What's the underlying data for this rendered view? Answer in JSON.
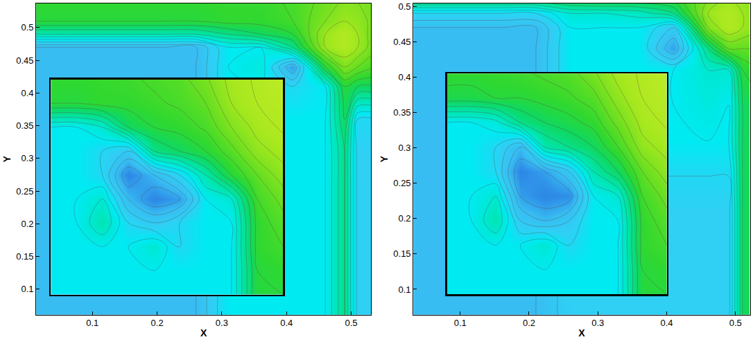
{
  "chart_data": [
    {
      "type": "contour",
      "xlabel": "X",
      "ylabel": "Y",
      "xlim": [
        0.013,
        0.531
      ],
      "ylim": [
        0.061,
        0.537
      ],
      "xticks": [
        0.1,
        0.2,
        0.3,
        0.4,
        0.5
      ],
      "yticks": [
        0.1,
        0.15,
        0.2,
        0.25,
        0.3,
        0.35,
        0.4,
        0.45,
        0.5
      ],
      "zlim": [
        0,
        1
      ],
      "x": [
        0.01,
        0.06,
        0.11,
        0.16,
        0.21,
        0.26,
        0.31,
        0.36,
        0.41,
        0.46,
        0.49,
        0.51,
        0.54
      ],
      "y": [
        0.06,
        0.11,
        0.16,
        0.21,
        0.26,
        0.31,
        0.36,
        0.41,
        0.44,
        0.47,
        0.49,
        0.51,
        0.54
      ],
      "z": [
        [
          0.2,
          0.2,
          0.2,
          0.2,
          0.2,
          0.2,
          0.35,
          0.35,
          0.35,
          0.35,
          0.5,
          0.28,
          0.28
        ],
        [
          0.2,
          0.2,
          0.2,
          0.2,
          0.2,
          0.2,
          0.35,
          0.35,
          0.35,
          0.35,
          0.5,
          0.28,
          0.28
        ],
        [
          0.2,
          0.2,
          0.2,
          0.2,
          0.2,
          0.2,
          0.35,
          0.35,
          0.35,
          0.35,
          0.5,
          0.28,
          0.28
        ],
        [
          0.2,
          0.2,
          0.2,
          0.2,
          0.2,
          0.2,
          0.35,
          0.35,
          0.35,
          0.35,
          0.5,
          0.28,
          0.28
        ],
        [
          0.2,
          0.2,
          0.2,
          0.2,
          0.2,
          0.2,
          0.35,
          0.35,
          0.35,
          0.35,
          0.5,
          0.28,
          0.28
        ],
        [
          0.2,
          0.2,
          0.2,
          0.2,
          0.2,
          0.2,
          0.35,
          0.35,
          0.35,
          0.35,
          0.5,
          0.28,
          0.28
        ],
        [
          0.2,
          0.2,
          0.2,
          0.2,
          0.2,
          0.2,
          0.35,
          0.35,
          0.35,
          0.35,
          0.55,
          0.3,
          0.3
        ],
        [
          0.2,
          0.2,
          0.2,
          0.2,
          0.2,
          0.2,
          0.35,
          0.35,
          0.3,
          0.35,
          0.6,
          0.55,
          0.55
        ],
        [
          0.2,
          0.2,
          0.2,
          0.2,
          0.2,
          0.2,
          0.35,
          0.38,
          0.15,
          0.6,
          0.75,
          0.7,
          0.65
        ],
        [
          0.2,
          0.2,
          0.2,
          0.2,
          0.2,
          0.2,
          0.35,
          0.35,
          0.5,
          0.8,
          0.85,
          0.8,
          0.7
        ],
        [
          0.45,
          0.45,
          0.45,
          0.45,
          0.45,
          0.45,
          0.5,
          0.55,
          0.6,
          0.8,
          0.85,
          0.8,
          0.7
        ],
        [
          0.6,
          0.6,
          0.6,
          0.6,
          0.6,
          0.6,
          0.62,
          0.62,
          0.65,
          0.75,
          0.8,
          0.78,
          0.72
        ],
        [
          0.62,
          0.62,
          0.62,
          0.62,
          0.62,
          0.62,
          0.63,
          0.63,
          0.66,
          0.72,
          0.76,
          0.75,
          0.72
        ]
      ],
      "inset": {
        "type": "contour",
        "tick_labels": false,
        "z": [
          [
            0.35,
            0.35,
            0.35,
            0.35,
            0.35,
            0.35,
            0.35,
            0.35,
            0.6,
            0.6
          ],
          [
            0.35,
            0.35,
            0.35,
            0.35,
            0.35,
            0.35,
            0.35,
            0.35,
            0.6,
            0.62
          ],
          [
            0.35,
            0.35,
            0.35,
            0.35,
            0.4,
            0.3,
            0.35,
            0.35,
            0.62,
            0.65
          ],
          [
            0.35,
            0.35,
            0.45,
            0.3,
            0.25,
            0.3,
            0.35,
            0.35,
            0.62,
            0.68
          ],
          [
            0.35,
            0.35,
            0.4,
            0.2,
            0.1,
            0.15,
            0.35,
            0.4,
            0.65,
            0.72
          ],
          [
            0.35,
            0.35,
            0.3,
            0.1,
            0.2,
            0.3,
            0.45,
            0.6,
            0.7,
            0.78
          ],
          [
            0.35,
            0.35,
            0.3,
            0.25,
            0.5,
            0.55,
            0.6,
            0.68,
            0.78,
            0.82
          ],
          [
            0.35,
            0.35,
            0.4,
            0.55,
            0.6,
            0.62,
            0.66,
            0.75,
            0.82,
            0.86
          ],
          [
            0.6,
            0.6,
            0.62,
            0.62,
            0.64,
            0.66,
            0.7,
            0.8,
            0.85,
            0.88
          ],
          [
            0.62,
            0.62,
            0.63,
            0.64,
            0.66,
            0.68,
            0.74,
            0.82,
            0.86,
            0.9
          ]
        ]
      }
    },
    {
      "type": "contour",
      "xlabel": "X",
      "ylabel": "Y",
      "xlim": [
        0.032,
        0.521
      ],
      "ylim": [
        0.064,
        0.504
      ],
      "xticks": [
        0.1,
        0.2,
        0.3,
        0.4,
        0.5
      ],
      "yticks": [
        0.1,
        0.15,
        0.2,
        0.25,
        0.3,
        0.35,
        0.4,
        0.45,
        0.5
      ],
      "zlim": [
        0,
        1
      ],
      "x": [
        0.01,
        0.06,
        0.11,
        0.16,
        0.21,
        0.26,
        0.31,
        0.36,
        0.41,
        0.46,
        0.49,
        0.51,
        0.54
      ],
      "y": [
        0.06,
        0.11,
        0.16,
        0.21,
        0.26,
        0.31,
        0.36,
        0.41,
        0.44,
        0.47,
        0.49,
        0.51,
        0.54
      ],
      "z": [
        [
          0.2,
          0.2,
          0.2,
          0.2,
          0.2,
          0.28,
          0.28,
          0.28,
          0.28,
          0.28,
          0.28,
          0.55,
          0.6
        ],
        [
          0.2,
          0.2,
          0.2,
          0.2,
          0.2,
          0.28,
          0.28,
          0.28,
          0.28,
          0.28,
          0.28,
          0.55,
          0.6
        ],
        [
          0.2,
          0.2,
          0.2,
          0.2,
          0.2,
          0.28,
          0.28,
          0.28,
          0.28,
          0.28,
          0.28,
          0.55,
          0.6
        ],
        [
          0.2,
          0.2,
          0.2,
          0.2,
          0.2,
          0.28,
          0.28,
          0.28,
          0.28,
          0.28,
          0.28,
          0.55,
          0.6
        ],
        [
          0.2,
          0.2,
          0.2,
          0.2,
          0.2,
          0.3,
          0.3,
          0.3,
          0.3,
          0.3,
          0.3,
          0.55,
          0.6
        ],
        [
          0.2,
          0.2,
          0.2,
          0.2,
          0.2,
          0.35,
          0.35,
          0.35,
          0.35,
          0.35,
          0.35,
          0.55,
          0.6
        ],
        [
          0.2,
          0.2,
          0.2,
          0.2,
          0.2,
          0.35,
          0.35,
          0.35,
          0.35,
          0.38,
          0.35,
          0.55,
          0.6
        ],
        [
          0.2,
          0.2,
          0.2,
          0.2,
          0.2,
          0.35,
          0.35,
          0.35,
          0.35,
          0.4,
          0.4,
          0.6,
          0.65
        ],
        [
          0.2,
          0.2,
          0.2,
          0.2,
          0.2,
          0.35,
          0.35,
          0.35,
          0.15,
          0.5,
          0.7,
          0.7,
          0.7
        ],
        [
          0.2,
          0.2,
          0.2,
          0.2,
          0.2,
          0.35,
          0.35,
          0.35,
          0.25,
          0.75,
          0.85,
          0.8,
          0.75
        ],
        [
          0.3,
          0.3,
          0.3,
          0.3,
          0.3,
          0.4,
          0.4,
          0.42,
          0.5,
          0.8,
          0.85,
          0.8,
          0.75
        ],
        [
          0.55,
          0.55,
          0.55,
          0.55,
          0.55,
          0.58,
          0.6,
          0.6,
          0.62,
          0.75,
          0.8,
          0.78,
          0.75
        ],
        [
          0.6,
          0.6,
          0.6,
          0.6,
          0.6,
          0.62,
          0.63,
          0.63,
          0.66,
          0.72,
          0.76,
          0.75,
          0.72
        ]
      ],
      "inset": {
        "type": "contour",
        "tick_labels": false,
        "z": [
          [
            0.35,
            0.35,
            0.35,
            0.35,
            0.35,
            0.35,
            0.35,
            0.35,
            0.6,
            0.6
          ],
          [
            0.35,
            0.35,
            0.35,
            0.35,
            0.35,
            0.35,
            0.35,
            0.35,
            0.6,
            0.62
          ],
          [
            0.35,
            0.35,
            0.35,
            0.35,
            0.4,
            0.3,
            0.35,
            0.35,
            0.62,
            0.65
          ],
          [
            0.35,
            0.35,
            0.45,
            0.25,
            0.2,
            0.25,
            0.35,
            0.35,
            0.62,
            0.68
          ],
          [
            0.35,
            0.35,
            0.4,
            0.15,
            0.1,
            0.12,
            0.35,
            0.4,
            0.65,
            0.72
          ],
          [
            0.35,
            0.35,
            0.3,
            0.1,
            0.15,
            0.25,
            0.45,
            0.55,
            0.7,
            0.78
          ],
          [
            0.35,
            0.35,
            0.3,
            0.2,
            0.45,
            0.5,
            0.55,
            0.65,
            0.78,
            0.82
          ],
          [
            0.35,
            0.35,
            0.38,
            0.5,
            0.55,
            0.58,
            0.62,
            0.72,
            0.82,
            0.86
          ],
          [
            0.58,
            0.58,
            0.6,
            0.6,
            0.62,
            0.64,
            0.68,
            0.78,
            0.85,
            0.88
          ],
          [
            0.62,
            0.62,
            0.63,
            0.64,
            0.66,
            0.68,
            0.74,
            0.82,
            0.86,
            0.9
          ]
        ]
      }
    }
  ]
}
